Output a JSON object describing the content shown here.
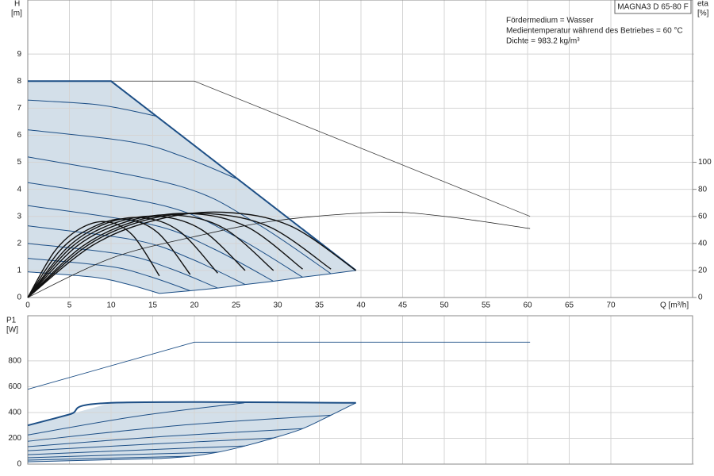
{
  "chart_data": [
    {
      "type": "line",
      "title": "MAGNA3 D 65-80 F",
      "notes": [
        "Fördermedium = Wasser",
        "Medientemperatur während des Betriebes = 60 °C",
        "Dichte = 983.2 kg/m³"
      ],
      "ylabel": "H",
      "yunit": "[m]",
      "y2label": "eta",
      "y2unit": "[%]",
      "xlabel": "Q [m³/h]",
      "xlim": [
        0,
        80
      ],
      "xticks": [
        0,
        5,
        10,
        15,
        20,
        25,
        30,
        35,
        40,
        45,
        50,
        55,
        60,
        65,
        70
      ],
      "ylim": [
        0,
        11
      ],
      "yticks": [
        0,
        1,
        2,
        3,
        4,
        5,
        6,
        7,
        8,
        9
      ],
      "y2lim": [
        0,
        220
      ],
      "y2ticks": [
        0,
        20,
        40,
        60,
        80,
        100
      ],
      "grid": true,
      "area_color": "#d3dfe9",
      "series": [
        {
          "color": "#444444",
          "width": 0.8,
          "x": [
            0,
            20,
            60.3
          ],
          "values": [
            8,
            8,
            3
          ]
        },
        {
          "color": "#1d4f86",
          "width": 2,
          "x": [
            0,
            10,
            39.4
          ],
          "values": [
            8,
            8,
            1.0
          ]
        },
        {
          "color": "#1d4f86",
          "width": 1,
          "x": [
            15.8,
            19.5,
            22.8,
            26.1,
            29.5,
            33,
            36.4,
            39.4
          ],
          "values": [
            0.15,
            0.25,
            0.35,
            0.48,
            0.6,
            0.75,
            0.88,
            1.0
          ]
        },
        {
          "color": "#1d4f86",
          "width": 1,
          "smooth": true,
          "x": [
            0,
            7.75,
            11.6,
            15.5
          ],
          "values": [
            7.3,
            7.15,
            6.96,
            6.7
          ]
        },
        {
          "color": "#1d4f86",
          "width": 1,
          "smooth": true,
          "x": [
            0,
            12.5,
            18.8,
            25
          ],
          "values": [
            6.2,
            5.75,
            5.19,
            4.4
          ]
        },
        {
          "color": "#1d4f86",
          "width": 1,
          "smooth": true,
          "x": [
            0,
            18.2,
            27.3,
            36.4
          ],
          "values": [
            5.2,
            4.12,
            2.77,
            0.88
          ]
        },
        {
          "color": "#1d4f86",
          "width": 1,
          "smooth": true,
          "x": [
            0,
            16.5,
            24.8,
            33
          ],
          "values": [
            4.25,
            3.38,
            2.28,
            0.75
          ]
        },
        {
          "color": "#1d4f86",
          "width": 1,
          "smooth": true,
          "x": [
            0,
            14.8,
            22.1,
            29.5
          ],
          "values": [
            3.4,
            2.7,
            1.83,
            0.6
          ]
        },
        {
          "color": "#1d4f86",
          "width": 1,
          "smooth": true,
          "x": [
            0,
            13.1,
            19.6,
            26.1
          ],
          "values": [
            2.65,
            2.11,
            1.43,
            0.48
          ]
        },
        {
          "color": "#1d4f86",
          "width": 1,
          "smooth": true,
          "x": [
            0,
            11.4,
            17.1,
            22.8
          ],
          "values": [
            2.0,
            1.59,
            1.07,
            0.35
          ]
        },
        {
          "color": "#1d4f86",
          "width": 1,
          "smooth": true,
          "x": [
            0,
            9.8,
            14.6,
            19.5
          ],
          "values": [
            1.45,
            1.15,
            0.78,
            0.25
          ]
        },
        {
          "color": "#1d4f86",
          "width": 1,
          "smooth": true,
          "x": [
            0,
            7.9,
            11.9,
            15.8
          ],
          "values": [
            0.95,
            0.75,
            0.5,
            0.15
          ]
        },
        {
          "color": "#222222",
          "width": 0.8,
          "smooth": true,
          "axis": "y2",
          "x": [
            0,
            10,
            20,
            30,
            42.3,
            50,
            60.3
          ],
          "values": [
            0,
            29,
            45,
            57,
            63,
            60,
            51
          ]
        },
        {
          "color": "#111111",
          "width": 1.4,
          "smooth": true,
          "axis": "y2",
          "x": [
            0,
            3.2,
            6.3,
            9.5,
            12.6,
            15.8
          ],
          "values": [
            0,
            34,
            51,
            56,
            46,
            16
          ]
        },
        {
          "color": "#111111",
          "width": 1.4,
          "smooth": true,
          "axis": "y2",
          "x": [
            0,
            3.9,
            7.8,
            11.7,
            15.6,
            19.5
          ],
          "values": [
            0,
            35,
            52,
            58,
            48,
            17
          ]
        },
        {
          "color": "#111111",
          "width": 1.4,
          "smooth": true,
          "axis": "y2",
          "x": [
            0,
            4.6,
            9.1,
            13.7,
            18.2,
            22.8
          ],
          "values": [
            0,
            36,
            54,
            59,
            49,
            18
          ]
        },
        {
          "color": "#111111",
          "width": 1.4,
          "smooth": true,
          "axis": "y2",
          "x": [
            0,
            5.2,
            10.4,
            15.7,
            20.9,
            26.1
          ],
          "values": [
            0,
            37,
            55,
            60,
            50,
            20
          ]
        },
        {
          "color": "#111111",
          "width": 1.4,
          "smooth": true,
          "axis": "y2",
          "x": [
            0,
            5.9,
            11.8,
            17.7,
            23.6,
            29.5
          ],
          "values": [
            0,
            38,
            56,
            61,
            51,
            20
          ]
        },
        {
          "color": "#111111",
          "width": 1.4,
          "smooth": true,
          "axis": "y2",
          "x": [
            0,
            6.6,
            13.2,
            19.8,
            26.4,
            33
          ],
          "values": [
            0,
            38,
            57,
            62,
            52,
            21
          ]
        },
        {
          "color": "#111111",
          "width": 1.4,
          "smooth": true,
          "axis": "y2",
          "x": [
            0,
            7.3,
            14.6,
            21.8,
            29.1,
            36.4
          ],
          "values": [
            0,
            39,
            58,
            62,
            52,
            21
          ]
        },
        {
          "color": "#111111",
          "width": 1.4,
          "smooth": true,
          "axis": "y2",
          "x": [
            0,
            7.9,
            15.8,
            23.6,
            31.5,
            39.4
          ],
          "values": [
            0,
            39,
            58,
            63,
            53,
            20
          ]
        }
      ]
    },
    {
      "type": "line",
      "ylabel": "P1",
      "yunit": "[W]",
      "xlim": [
        0,
        80
      ],
      "ylim": [
        0,
        1150
      ],
      "yticks": [
        0,
        200,
        400,
        600,
        800
      ],
      "grid": true,
      "area_color": "#d3dfe9",
      "series": [
        {
          "color": "#1d4f86",
          "width": 0.8,
          "x": [
            0,
            20,
            60.3
          ],
          "values": [
            580,
            945,
            945
          ]
        },
        {
          "color": "#1d4f86",
          "width": 2,
          "smooth": true,
          "x": [
            0,
            5,
            10,
            39.4
          ],
          "values": [
            300,
            385,
            475,
            475
          ]
        },
        {
          "color": "#1d4f86",
          "width": 1,
          "smooth": true,
          "x": [
            15.8,
            19.5,
            22.8,
            26.1,
            29.5,
            33,
            36.4,
            39.4
          ],
          "values": [
            43,
            61,
            92,
            141,
            202,
            275,
            379,
            475
          ]
        },
        {
          "color": "#1d4f86",
          "width": 1,
          "smooth": true,
          "x": [
            0,
            13,
            26
          ],
          "values": [
            226,
            370,
            475
          ]
        },
        {
          "color": "#1d4f86",
          "width": 1,
          "smooth": true,
          "x": [
            0,
            18.2,
            36.4
          ],
          "values": [
            177,
            300,
            379
          ]
        },
        {
          "color": "#1d4f86",
          "width": 1,
          "smooth": true,
          "x": [
            0,
            16.5,
            33
          ],
          "values": [
            135,
            215,
            275
          ]
        },
        {
          "color": "#1d4f86",
          "width": 1,
          "smooth": true,
          "x": [
            0,
            14.8,
            29.5
          ],
          "values": [
            104,
            155,
            202
          ]
        },
        {
          "color": "#1d4f86",
          "width": 1,
          "smooth": true,
          "x": [
            0,
            13,
            26.1
          ],
          "values": [
            73,
            108,
            141
          ]
        },
        {
          "color": "#1d4f86",
          "width": 1,
          "smooth": true,
          "x": [
            0,
            11.4,
            22.8
          ],
          "values": [
            49,
            72,
            92
          ]
        },
        {
          "color": "#1d4f86",
          "width": 1,
          "smooth": true,
          "x": [
            0,
            9.8,
            19.5
          ],
          "values": [
            31,
            46,
            61
          ]
        },
        {
          "color": "#1d4f86",
          "width": 1,
          "smooth": true,
          "x": [
            0,
            7.9,
            15.8
          ],
          "values": [
            18,
            31,
            43
          ]
        }
      ]
    }
  ]
}
